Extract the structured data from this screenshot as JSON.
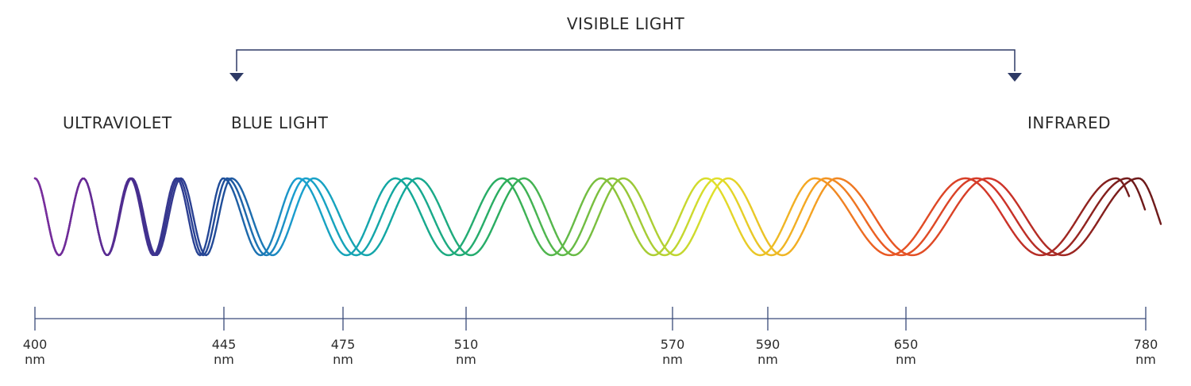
{
  "title": "VISIBLE LIGHT",
  "regions": {
    "ultraviolet": "ULTRAVIOLET",
    "blue_light": "BLUE LIGHT",
    "infrared": "INFRARED"
  },
  "bracket_color": "#2e3a66",
  "axis_color": "#3a4a7a",
  "axis": {
    "min": 400,
    "max": 780,
    "unit": "nm",
    "ticks": [
      400,
      445,
      475,
      510,
      570,
      590,
      650,
      780
    ]
  },
  "wave_colors": [
    "#7b2f9e",
    "#6a2a96",
    "#4b2d8f",
    "#2f3a8f",
    "#1f4f9a",
    "#1aa0d0",
    "#12a89a",
    "#2eae5a",
    "#88c23a",
    "#e0e02a",
    "#f5a623",
    "#ea5a23",
    "#d0342a",
    "#6e1a1a"
  ]
}
